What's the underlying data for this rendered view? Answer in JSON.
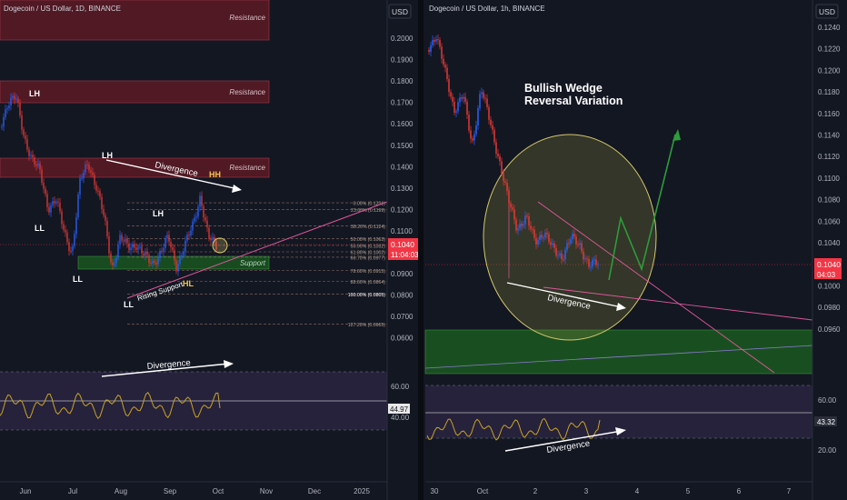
{
  "colors": {
    "background": "#131722",
    "bull": "#2962ff",
    "bear": "#e53935",
    "resistance": "#6b1d2a",
    "support": "#1b5e20",
    "rsi": "#c9a227",
    "white": "#ffffff",
    "axis_text": "#b2b5be",
    "price_badge": "#f23645",
    "rsi_badge": "#2a2e39",
    "fib": "#8d6e63",
    "pink_line": "#e0579d",
    "circle": "#d4c56a",
    "green_arrow": "#4caf50"
  },
  "left": {
    "header": {
      "title": "Dogecoin / US Dollar, 1D, BINANCE",
      "currency": "USD"
    },
    "price_axis": [
      "0.2000",
      "0.1900",
      "0.1800",
      "0.1700",
      "0.1600",
      "0.1500",
      "0.1400",
      "0.1300",
      "0.1200",
      "0.1100",
      "0.1000",
      "0.0900",
      "0.0800",
      "0.0700",
      "0.0600"
    ],
    "price_badge": {
      "price": "0.1040",
      "timer": "11:04:03"
    },
    "rsi_axis": [
      "60.00",
      "40.00"
    ],
    "rsi_badge": "44.97",
    "x_axis": [
      "Jun",
      "Jul",
      "Aug",
      "Sep",
      "Oct",
      "Nov",
      "Dec",
      "2025"
    ],
    "zones": [
      {
        "name": "resistance-top",
        "label": "Resistance"
      },
      {
        "name": "resistance-mid",
        "label": "Resistance"
      },
      {
        "name": "resistance-low",
        "label": "Resistance"
      },
      {
        "name": "support",
        "label": "Support"
      }
    ],
    "fib_levels": [
      {
        "label": "0.00% (0.1231)",
        "value": 0.1231
      },
      {
        "label": "23.60% (0.1199)",
        "value": 0.1199
      },
      {
        "label": "38.20% (0.1124)",
        "value": 0.1124
      },
      {
        "label": "50.00% (0.1063)",
        "value": 0.1063
      },
      {
        "label": "55.90% (0.1032)",
        "value": 0.1032
      },
      {
        "label": "61.80% (0.1002)",
        "value": 0.1002
      },
      {
        "label": "66.70% (0.0977)",
        "value": 0.0977
      },
      {
        "label": "78.60% (0.0915)",
        "value": 0.0915
      },
      {
        "label": "88.60% (0.0864)",
        "value": 0.0864
      },
      {
        "label": "100.00% (0.0805)",
        "value": 0.0805
      },
      {
        "label": "127.20% (0.0665)",
        "value": 0.0665
      }
    ],
    "swing_labels": [
      "LH",
      "LH",
      "LH",
      "LL",
      "LL",
      "LL",
      "HH",
      "HL"
    ],
    "annotations": {
      "divergence_price": "Divergence",
      "divergence_rsi": "Divergence",
      "rising_support": "Rising Support"
    }
  },
  "right": {
    "header": {
      "title": "Dogecoin / US Dollar, 1h, BINANCE",
      "currency": "USD"
    },
    "price_axis": [
      "0.1240",
      "0.1220",
      "0.1200",
      "0.1180",
      "0.1160",
      "0.1140",
      "0.1120",
      "0.1100",
      "0.1080",
      "0.1060",
      "0.1040",
      "0.1020",
      "0.1000",
      "0.0980",
      "0.0960"
    ],
    "price_badge": {
      "price": "0.1040",
      "timer": "04:03"
    },
    "rsi_axis": [
      "60.00",
      "40.00",
      "20.00"
    ],
    "rsi_badge": "43.32",
    "x_axis": [
      "30",
      "Oct",
      "2",
      "3",
      "4",
      "5",
      "6",
      "7"
    ],
    "annotations": {
      "pattern_line1": "Bullish Wedge",
      "pattern_line2": "Reversal Variation",
      "divergence_price": "Divergence",
      "divergence_rsi": "Divergence"
    }
  },
  "chart_data": [
    {
      "type": "candlestick",
      "title": "Dogecoin / US Dollar, 1D, BINANCE",
      "x_ticks": [
        "Jun",
        "Jul",
        "Aug",
        "Sep",
        "Oct",
        "Nov",
        "Dec",
        "2025"
      ],
      "y_ticks": [
        0.2,
        0.19,
        0.18,
        0.17,
        0.16,
        0.15,
        0.14,
        0.13,
        0.12,
        0.11,
        0.1,
        0.09,
        0.08,
        0.07,
        0.06
      ],
      "ylim": [
        0.055,
        0.205
      ],
      "last_price": 0.104,
      "rsi_last": 44.97,
      "rsi_levels": [
        60,
        40
      ],
      "zones": [
        {
          "label": "Resistance",
          "from": 0.196,
          "to": 0.21
        },
        {
          "label": "Resistance",
          "from": 0.1655,
          "to": 0.1765
        },
        {
          "label": "Resistance",
          "from": 0.1335,
          "to": 0.142
        },
        {
          "label": "Support",
          "from": 0.0945,
          "to": 0.0995
        }
      ],
      "fibonacci": [
        0.1231,
        0.1199,
        0.1124,
        0.1063,
        0.1032,
        0.1002,
        0.0977,
        0.0915,
        0.0864,
        0.0805,
        0.0665
      ]
    },
    {
      "type": "candlestick",
      "title": "Dogecoin / US Dollar, 1h, BINANCE",
      "x_ticks": [
        "30",
        "Oct",
        "2",
        "3",
        "4",
        "5",
        "6",
        "7"
      ],
      "y_ticks": [
        0.124,
        0.122,
        0.12,
        0.118,
        0.116,
        0.114,
        0.112,
        0.11,
        0.108,
        0.106,
        0.104,
        0.102,
        0.1,
        0.098,
        0.096
      ],
      "ylim": [
        0.095,
        0.1255
      ],
      "last_price": 0.104,
      "rsi_last": 43.32,
      "rsi_levels": [
        60,
        40,
        20
      ],
      "zones": [
        {
          "label": "",
          "from": 0.0951,
          "to": 0.0988
        }
      ]
    }
  ]
}
